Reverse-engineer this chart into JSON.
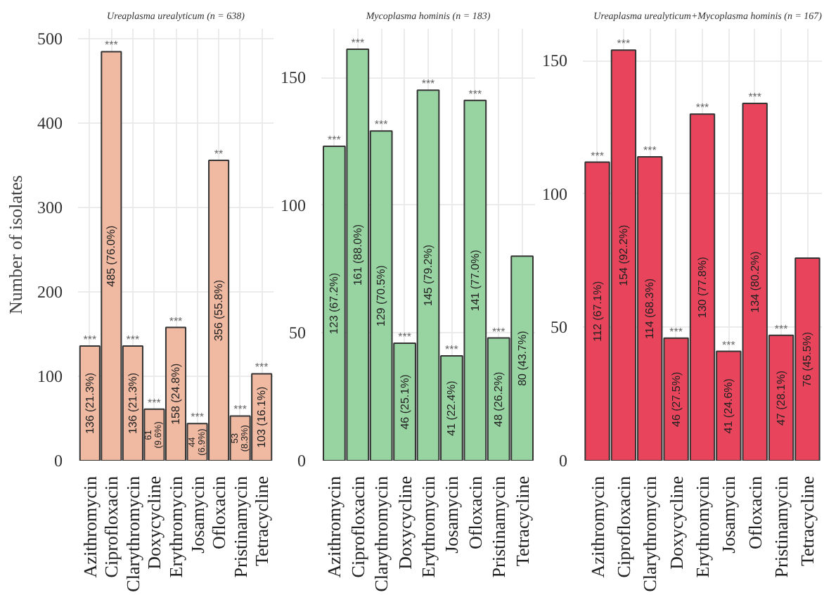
{
  "chart_data": [
    {
      "type": "bar",
      "title": "Ureaplasma urealyticum (n = 638)",
      "ylabel": "Number of isolates",
      "categories": [
        "Azithromycin",
        "Ciprofloxacin",
        "Clarythromycin",
        "Doxycycline",
        "Erythromycin",
        "Josamycin",
        "Ofloxacin",
        "Pristinamycin",
        "Tetracycline"
      ],
      "values": [
        136,
        485,
        136,
        61,
        158,
        44,
        356,
        53,
        103
      ],
      "color": "#efb9a2",
      "value_labels": [
        "136 (21.3%)",
        "485 (76.0%)",
        "136 (21.3%)",
        "61 (9.6%)",
        "158 (24.8%)",
        "44 (6.9%)",
        "356 (55.8%)",
        "53 (8.3%)",
        "103 (16.1%)"
      ],
      "annotations": [
        {
          "text": "***",
          "x": "Azithromycin",
          "y": 136
        },
        {
          "text": "***",
          "x": "Ciprofloxacin",
          "y": 485
        },
        {
          "text": "***",
          "x": "Clarythromycin",
          "y": 136
        },
        {
          "text": "***",
          "x": "Doxycycline",
          "y": 61
        },
        {
          "text": "***",
          "x": "Erythromycin",
          "y": 158
        },
        {
          "text": "***",
          "x": "Josamycin",
          "y": 44
        },
        {
          "text": "**",
          "x": "Ofloxacin",
          "y": 356
        },
        {
          "text": "***",
          "x": "Pristinamycin",
          "y": 53
        },
        {
          "text": "***",
          "x": "Tetracycline",
          "y": 103
        }
      ],
      "ylim": [
        0,
        512
      ],
      "yticks": [
        0,
        100,
        200,
        300,
        400,
        500
      ],
      "grid": true
    },
    {
      "type": "bar",
      "title": "Mycoplasma hominis (n = 183)",
      "categories": [
        "Azithromycin",
        "Ciprofloxacin",
        "Clarythromycin",
        "Doxycycline",
        "Erythromycin",
        "Josamycin",
        "Ofloxacin",
        "Pristinamycin",
        "Tetracycline"
      ],
      "values": [
        123,
        161,
        129,
        46,
        145,
        41,
        141,
        48,
        80
      ],
      "color": "#98d4a2",
      "value_labels": [
        "123 (67.2%)",
        "161 (88.0%)",
        "129 (70.5%)",
        "46 (25.1%)",
        "145 (79.2%)",
        "41 (22.4%)",
        "141 (77.0%)",
        "48 (26.2%)",
        "80 (43.7%)"
      ],
      "annotations": [
        {
          "text": "***",
          "x": "Azithromycin",
          "y": 123
        },
        {
          "text": "***",
          "x": "Ciprofloxacin",
          "y": 161
        },
        {
          "text": "***",
          "x": "Clarythromycin",
          "y": 129
        },
        {
          "text": "***",
          "x": "Doxycycline",
          "y": 46
        },
        {
          "text": "***",
          "x": "Erythromycin",
          "y": 145
        },
        {
          "text": "***",
          "x": "Josamycin",
          "y": 41
        },
        {
          "text": "***",
          "x": "Ofloxacin",
          "y": 141
        },
        {
          "text": "***",
          "x": "Pristinamycin",
          "y": 48
        }
      ],
      "ylim": [
        0,
        169
      ],
      "yticks": [
        0,
        50,
        100,
        150
      ],
      "grid": true
    },
    {
      "type": "bar",
      "title": "Ureaplasma urealyticum+Mycoplasma hominis (n = 167)",
      "categories": [
        "Azithromycin",
        "Ciprofloxacin",
        "Clarythromycin",
        "Doxycycline",
        "Erythromycin",
        "Josamycin",
        "Ofloxacin",
        "Pristinamycin",
        "Tetracycline"
      ],
      "values": [
        112,
        154,
        114,
        46,
        130,
        41,
        134,
        47,
        76
      ],
      "color": "#e8455c",
      "value_labels": [
        "112 (67.1%)",
        "154 (92.2%)",
        "114 (68.3%)",
        "46 (27.5%)",
        "130 (77.8%)",
        "41 (24.6%)",
        "134 (80.2%)",
        "47 (28.1%)",
        "76 (45.5%)"
      ],
      "annotations": [
        {
          "text": "***",
          "x": "Azithromycin",
          "y": 112
        },
        {
          "text": "***",
          "x": "Ciprofloxacin",
          "y": 154
        },
        {
          "text": "***",
          "x": "Clarythromycin",
          "y": 114
        },
        {
          "text": "***",
          "x": "Doxycycline",
          "y": 46
        },
        {
          "text": "***",
          "x": "Erythromycin",
          "y": 130
        },
        {
          "text": "***",
          "x": "Josamycin",
          "y": 41
        },
        {
          "text": "***",
          "x": "Ofloxacin",
          "y": 134
        },
        {
          "text": "***",
          "x": "Pristinamycin",
          "y": 47
        }
      ],
      "ylim": [
        0,
        162
      ],
      "yticks": [
        0,
        50,
        100,
        150
      ],
      "grid": true
    }
  ]
}
